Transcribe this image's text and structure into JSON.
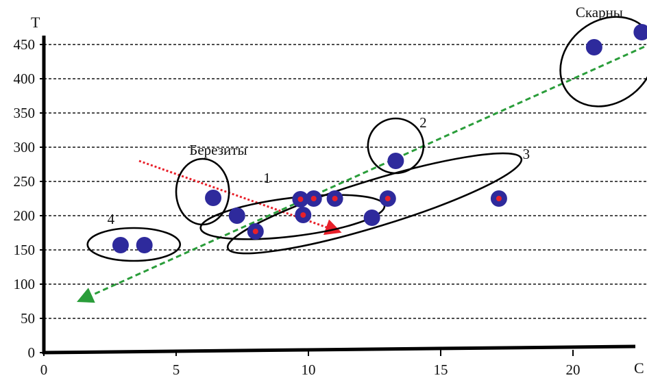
{
  "chart_data": {
    "type": "scatter",
    "title": "",
    "xlabel": "C",
    "ylabel": "T",
    "xlim": [
      0,
      23
    ],
    "ylim": [
      0,
      480
    ],
    "x_ticks": [
      0,
      5,
      10,
      15,
      20
    ],
    "y_ticks": [
      0,
      50,
      100,
      150,
      200,
      250,
      300,
      350,
      400,
      450
    ],
    "grid": "horizontal-dashed",
    "colors": {
      "point": "#2e2a9c",
      "point_inner": "#e8202a",
      "axis": "#000000",
      "grid": "#111111",
      "trend_green": "#2a9d3a",
      "trend_red": "#e8202a",
      "ellipse": "#000000"
    },
    "series": [
      {
        "values": [
          {
            "x": 2.9,
            "y": 157,
            "inner": false
          },
          {
            "x": 3.8,
            "y": 157,
            "inner": false
          },
          {
            "x": 6.4,
            "y": 226,
            "inner": false
          },
          {
            "x": 7.3,
            "y": 200,
            "inner": false
          },
          {
            "x": 8.0,
            "y": 177,
            "inner": true
          },
          {
            "x": 9.7,
            "y": 224,
            "inner": true
          },
          {
            "x": 9.8,
            "y": 201,
            "inner": true
          },
          {
            "x": 10.2,
            "y": 225,
            "inner": true
          },
          {
            "x": 11.0,
            "y": 225,
            "inner": true
          },
          {
            "x": 12.4,
            "y": 197,
            "inner": false
          },
          {
            "x": 13.0,
            "y": 225,
            "inner": true
          },
          {
            "x": 13.3,
            "y": 280,
            "inner": false
          },
          {
            "x": 17.2,
            "y": 225,
            "inner": true
          },
          {
            "x": 20.8,
            "y": 446,
            "inner": false
          },
          {
            "x": 22.6,
            "y": 468,
            "inner": false
          }
        ]
      }
    ],
    "trend_lines": [
      {
        "from": [
          23.0,
          452
        ],
        "to": [
          1.3,
          75
        ],
        "arrow": "end",
        "style": "dashed",
        "color": "green"
      },
      {
        "from": [
          3.6,
          280
        ],
        "to": [
          11.2,
          176
        ],
        "arrow": "end",
        "style": "dotted",
        "color": "red"
      }
    ],
    "groups": [
      {
        "label": "Березиты",
        "cx": 6.0,
        "cy": 235,
        "rx": 1.0,
        "ry": 48,
        "angle": 0
      },
      {
        "label": "1",
        "cx": 9.4,
        "cy": 198,
        "rx": 3.5,
        "ry": 28,
        "angle": -7
      },
      {
        "label": "2",
        "cx": 13.3,
        "cy": 302,
        "rx": 1.05,
        "ry": 40,
        "angle": 0
      },
      {
        "label": "3",
        "cx": 12.5,
        "cy": 218,
        "rx": 5.8,
        "ry": 34,
        "angle": -17
      },
      {
        "label": "4",
        "cx": 3.4,
        "cy": 158,
        "rx": 1.75,
        "ry": 24,
        "angle": 0
      },
      {
        "label": "Скарны",
        "cx": 21.3,
        "cy": 425,
        "rx": 1.9,
        "ry": 60,
        "angle": -38
      }
    ],
    "annotations": [
      {
        "text": "Скарны",
        "x": 20.1,
        "y": 490
      },
      {
        "text": "Березиты",
        "x": 5.5,
        "y": 289
      },
      {
        "text": "1",
        "x": 8.3,
        "y": 248
      },
      {
        "text": "2",
        "x": 14.2,
        "y": 329
      },
      {
        "text": "3",
        "x": 18.1,
        "y": 283
      },
      {
        "text": "4",
        "x": 2.4,
        "y": 188
      }
    ]
  }
}
